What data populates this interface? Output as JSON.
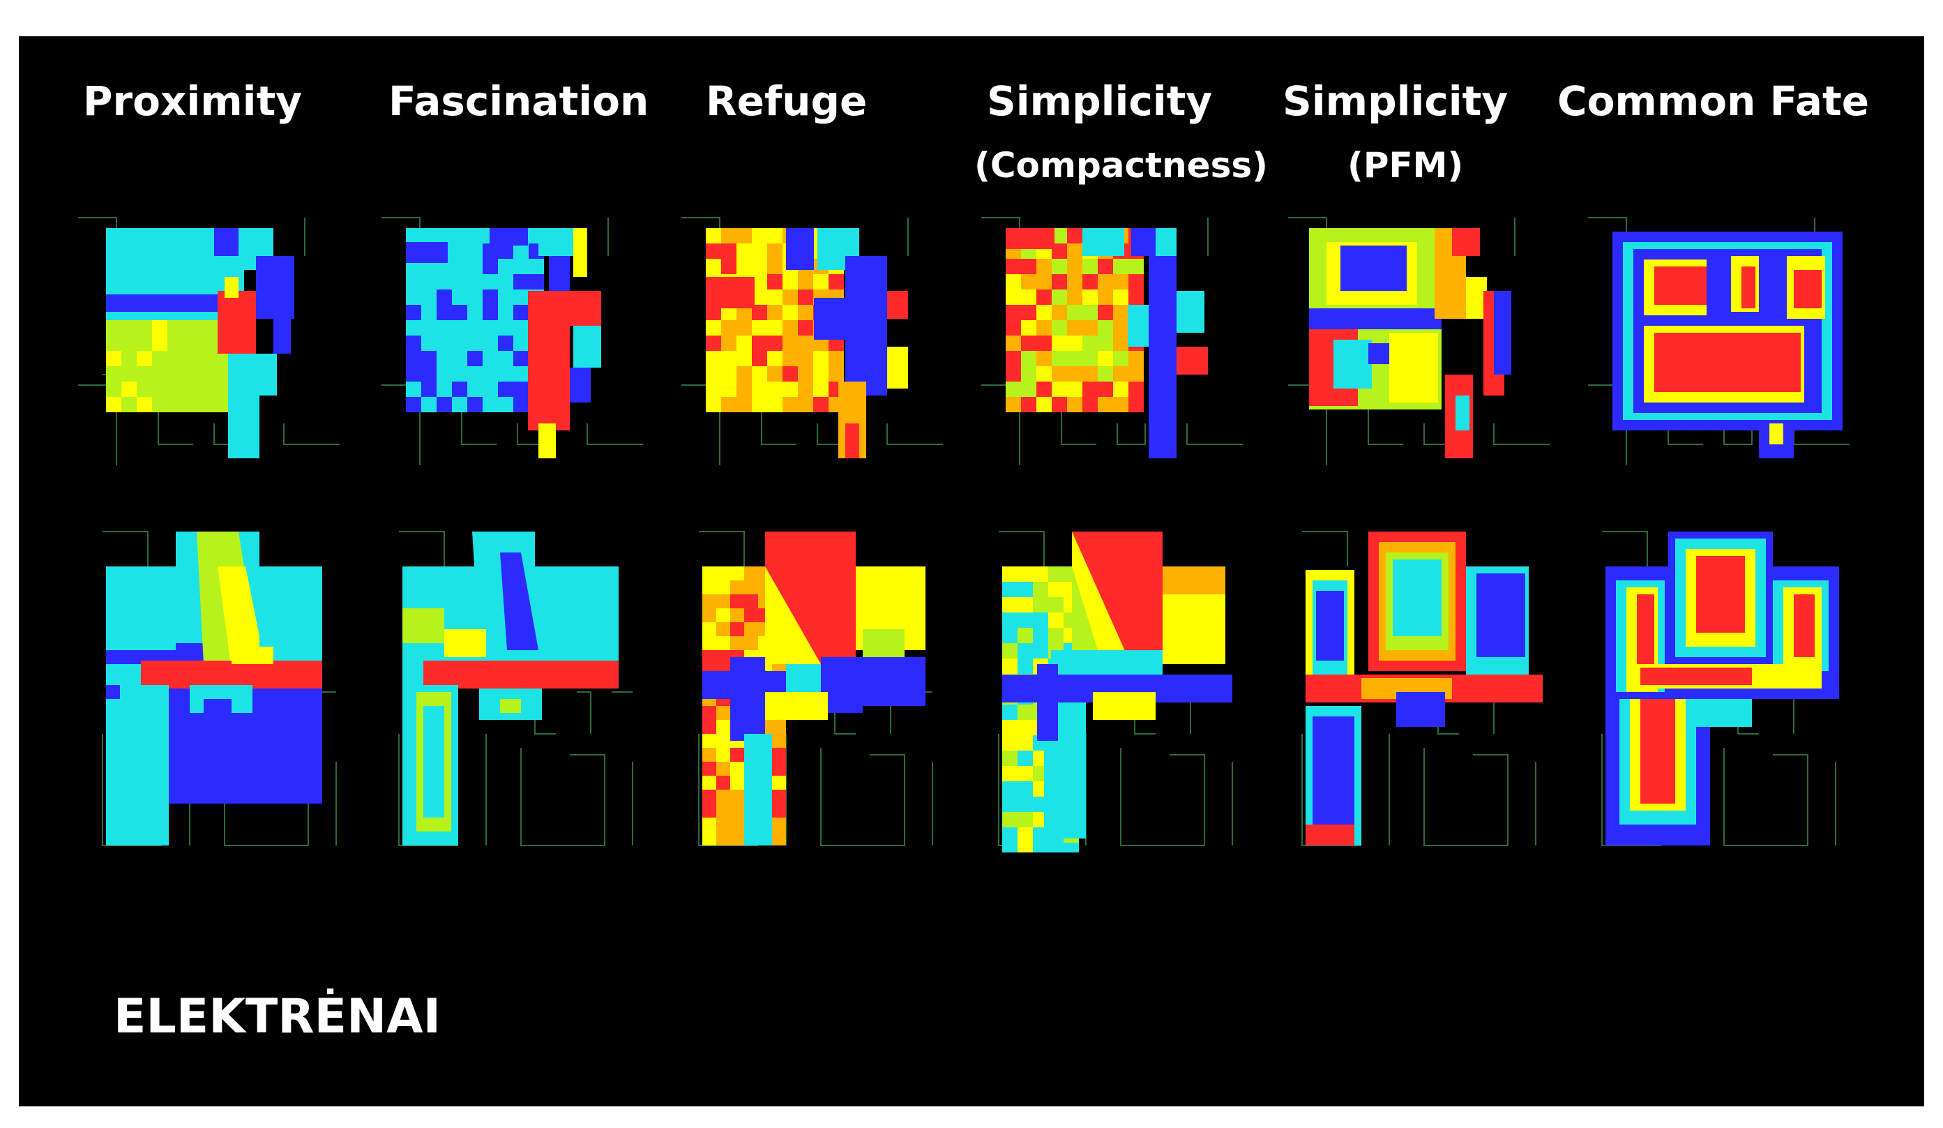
{
  "figure": {
    "background": "#000000",
    "place_label": "ELEKTRĖNAI",
    "columns": [
      {
        "title": "Proximity",
        "subtitle": ""
      },
      {
        "title": "Fascination",
        "subtitle": ""
      },
      {
        "title": "Refuge",
        "subtitle": ""
      },
      {
        "title": "Simplicity",
        "subtitle": "(Compactness)"
      },
      {
        "title": "Simplicity",
        "subtitle": "(PFM)"
      },
      {
        "title": "Common Fate",
        "subtitle": ""
      }
    ],
    "rows": [
      "upper-floor-plan",
      "lower-floor-plan"
    ],
    "colormap": [
      "#2b2bff",
      "#1ee3e6",
      "#b7f21c",
      "#ffff00",
      "#ffb100",
      "#ff2a2a"
    ],
    "plan_line_color": "#2e6b3a"
  }
}
